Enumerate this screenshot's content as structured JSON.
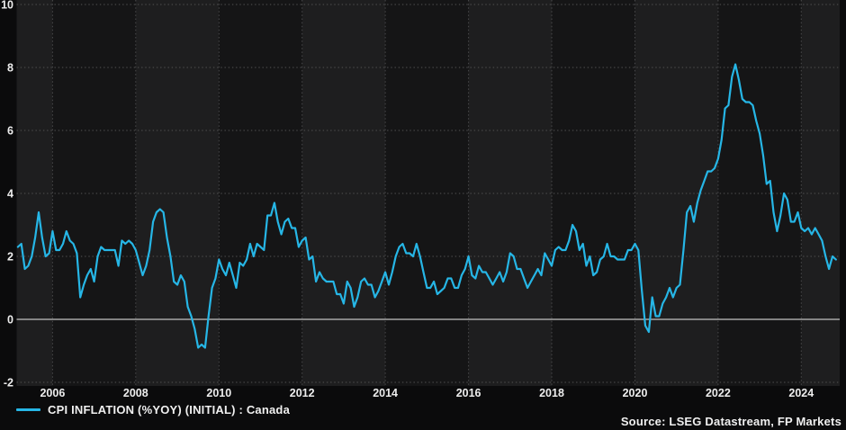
{
  "legend": {
    "label": "CPI INFLATION (%YOY) (INITIAL) : Canada"
  },
  "footer": {
    "source": "Source: LSEG Datastream, FP Markets"
  },
  "colors": {
    "figure_background": "#0b0b0c",
    "band_light": "#1e1e1f",
    "band_dark": "#151516",
    "hgrid": "#525252",
    "vgrid": "#4a4a4c",
    "zero_line": "#a6a6a6",
    "axis_text": "#ededed",
    "series_line": "#26b6e6"
  },
  "chart_data": {
    "type": "line",
    "title": "",
    "xlabel": "",
    "ylabel": "",
    "legend_position": "bottom-left",
    "grid": true,
    "ylim": [
      -2,
      10
    ],
    "yticks": [
      10,
      8,
      6,
      4,
      2,
      0,
      -2
    ],
    "xticks": [
      2006,
      2008,
      2010,
      2012,
      2014,
      2016,
      2018,
      2020,
      2022,
      2024
    ],
    "x_band_period_years": 2,
    "series": [
      {
        "name": "CPI INFLATION (%YOY) (INITIAL) : Canada",
        "color": "#26b6e6",
        "frequency": "monthly",
        "start_year": 2005,
        "start_month": 3,
        "values": [
          2.3,
          2.4,
          1.6,
          1.7,
          2.0,
          2.6,
          3.4,
          2.6,
          2.0,
          2.1,
          2.8,
          2.2,
          2.2,
          2.4,
          2.8,
          2.5,
          2.4,
          2.1,
          0.7,
          1.1,
          1.4,
          1.6,
          1.2,
          2.0,
          2.3,
          2.2,
          2.2,
          2.2,
          2.2,
          1.7,
          2.5,
          2.4,
          2.5,
          2.4,
          2.2,
          1.8,
          1.4,
          1.7,
          2.2,
          3.1,
          3.4,
          3.5,
          3.4,
          2.6,
          2.0,
          1.2,
          1.1,
          1.4,
          1.2,
          0.4,
          0.1,
          -0.3,
          -0.9,
          -0.8,
          -0.9,
          0.1,
          1.0,
          1.3,
          1.9,
          1.6,
          1.4,
          1.8,
          1.4,
          1.0,
          1.8,
          1.7,
          1.9,
          2.4,
          2.0,
          2.4,
          2.3,
          2.2,
          3.3,
          3.3,
          3.7,
          3.1,
          2.7,
          3.1,
          3.2,
          2.9,
          2.9,
          2.3,
          2.5,
          2.6,
          1.9,
          2.0,
          1.2,
          1.5,
          1.3,
          1.2,
          1.2,
          1.2,
          0.8,
          0.8,
          0.5,
          1.2,
          1.0,
          0.4,
          0.7,
          1.2,
          1.3,
          1.1,
          1.1,
          0.7,
          0.9,
          1.2,
          1.5,
          1.1,
          1.5,
          2.0,
          2.3,
          2.4,
          2.1,
          2.1,
          2.0,
          2.4,
          2.0,
          1.5,
          1.0,
          1.0,
          1.2,
          0.8,
          0.9,
          1.0,
          1.3,
          1.3,
          1.0,
          1.0,
          1.4,
          1.6,
          2.0,
          1.4,
          1.3,
          1.7,
          1.5,
          1.5,
          1.3,
          1.1,
          1.3,
          1.5,
          1.2,
          1.5,
          2.1,
          2.0,
          1.6,
          1.6,
          1.3,
          1.0,
          1.2,
          1.4,
          1.6,
          1.4,
          2.1,
          1.9,
          1.7,
          2.2,
          2.3,
          2.2,
          2.2,
          2.5,
          3.0,
          2.8,
          2.2,
          2.4,
          1.7,
          2.0,
          1.4,
          1.5,
          1.9,
          2.0,
          2.4,
          2.0,
          2.0,
          1.9,
          1.9,
          1.9,
          2.2,
          2.2,
          2.4,
          2.2,
          0.9,
          -0.2,
          -0.4,
          0.7,
          0.1,
          0.1,
          0.5,
          0.7,
          1.0,
          0.7,
          1.0,
          1.1,
          2.2,
          3.4,
          3.6,
          3.1,
          3.7,
          4.1,
          4.4,
          4.7,
          4.7,
          4.8,
          5.1,
          5.7,
          6.7,
          6.8,
          7.7,
          8.1,
          7.6,
          7.0,
          6.9,
          6.9,
          6.8,
          6.3,
          5.9,
          5.2,
          4.3,
          4.4,
          3.4,
          2.8,
          3.3,
          4.0,
          3.8,
          3.1,
          3.1,
          3.4,
          2.9,
          2.8,
          2.9,
          2.7,
          2.9,
          2.7,
          2.5,
          2.0,
          1.6,
          2.0,
          1.9
        ]
      }
    ]
  }
}
